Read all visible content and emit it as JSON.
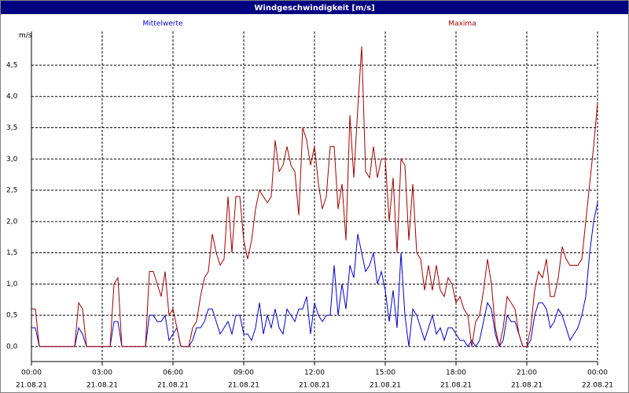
{
  "chart_data": {
    "type": "line",
    "title": "Windgeschwindigkeit [m/s]",
    "y_label": "m/s",
    "x": [
      0,
      10,
      20,
      30,
      40,
      50,
      60,
      70,
      80,
      90,
      100,
      110,
      120,
      130,
      140,
      150,
      160,
      170,
      180,
      190,
      200,
      210,
      220,
      230,
      240,
      250,
      260,
      270,
      280,
      290,
      300,
      310,
      320,
      330,
      340,
      350,
      360,
      370,
      380,
      390,
      400,
      410,
      420,
      430,
      440,
      450,
      460,
      470,
      480,
      490,
      500,
      510,
      520,
      530,
      540,
      550,
      560,
      570,
      580,
      590,
      600,
      610,
      620,
      630,
      640,
      650,
      660,
      670,
      680,
      690,
      700,
      710,
      720,
      730,
      740,
      750,
      760,
      770,
      780,
      790,
      800,
      810,
      820,
      830,
      840,
      850,
      860,
      870,
      880,
      890,
      900,
      910,
      920,
      930,
      940,
      950,
      960,
      970,
      980,
      990,
      1000,
      1010,
      1020,
      1030,
      1040,
      1050,
      1060,
      1070,
      1080,
      1090,
      1100,
      1110,
      1120,
      1130,
      1140,
      1150,
      1160,
      1170,
      1180,
      1190,
      1200,
      1210,
      1220,
      1230,
      1240,
      1250,
      1260,
      1270,
      1280,
      1290,
      1300,
      1310,
      1320,
      1330,
      1340,
      1350,
      1360,
      1370,
      1380,
      1390,
      1400,
      1410,
      1420,
      1430,
      1440
    ],
    "series": [
      {
        "name": "Mittelwerte",
        "color": "#0000cc",
        "values": [
          0.3,
          0.3,
          0,
          0,
          0,
          0,
          0,
          0,
          0,
          0,
          0,
          0,
          0.3,
          0.2,
          0,
          0,
          0,
          0,
          0,
          0,
          0,
          0.4,
          0.4,
          0,
          0,
          0,
          0,
          0,
          0,
          0,
          0.5,
          0.5,
          0.4,
          0.4,
          0.5,
          0.1,
          0.2,
          0.3,
          0,
          0,
          0,
          0.1,
          0.3,
          0.3,
          0.4,
          0.6,
          0.6,
          0.4,
          0.2,
          0.3,
          0.4,
          0.2,
          0.5,
          0.5,
          0.2,
          0.2,
          0.1,
          0.3,
          0.7,
          0.2,
          0.5,
          0.3,
          0.6,
          0.3,
          0.2,
          0.6,
          0.5,
          0.4,
          0.6,
          0.6,
          0.8,
          0.2,
          0.7,
          0.5,
          0.4,
          0.5,
          0.5,
          1.3,
          0.5,
          1.0,
          0.6,
          1.3,
          1.1,
          1.8,
          1.5,
          1.2,
          1.3,
          1.5,
          1.0,
          1.2,
          0.9,
          0.4,
          0.9,
          0.3,
          1.5,
          0.5,
          0,
          0.6,
          0.5,
          0.3,
          0.1,
          0.3,
          0.5,
          0.2,
          0.3,
          0.1,
          0.3,
          0.3,
          0.2,
          0.1,
          0.1,
          0,
          0.1,
          0,
          0.1,
          0.4,
          0.7,
          0.6,
          0.2,
          0,
          0.1,
          0.5,
          0.4,
          0.4,
          0.2,
          0,
          0,
          0.1,
          0.5,
          0.7,
          0.7,
          0.6,
          0.3,
          0.4,
          0.6,
          0.5,
          0.3,
          0.1,
          0.2,
          0.3,
          0.5,
          0.8,
          1.5,
          2.0,
          2.3
        ]
      },
      {
        "name": "Maxima",
        "color": "#a00000",
        "values": [
          0.6,
          0.6,
          0,
          0,
          0,
          0,
          0,
          0,
          0,
          0,
          0,
          0,
          0.7,
          0.6,
          0,
          0,
          0,
          0,
          0,
          0,
          0,
          1.0,
          1.1,
          0,
          0,
          0,
          0,
          0,
          0,
          0,
          1.2,
          1.2,
          1.0,
          0.8,
          1.2,
          0.5,
          0.6,
          0.3,
          0,
          0,
          0,
          0.3,
          0.4,
          0.8,
          1.1,
          1.2,
          1.8,
          1.5,
          1.3,
          1.4,
          2.4,
          1.5,
          2.4,
          2.4,
          1.7,
          1.4,
          1.7,
          2.2,
          2.5,
          2.4,
          2.3,
          2.4,
          3.3,
          2.8,
          2.9,
          3.2,
          2.9,
          2.8,
          2.1,
          3.5,
          3.3,
          2.9,
          3.2,
          2.6,
          2.2,
          2.4,
          3.2,
          3.2,
          2.2,
          2.6,
          1.7,
          3.7,
          2.7,
          3.8,
          4.8,
          2.8,
          2.7,
          3.2,
          2.7,
          3.0,
          3.0,
          2.0,
          2.7,
          1.5,
          3.0,
          2.9,
          1.7,
          2.6,
          1.5,
          1.4,
          0.9,
          1.3,
          0.9,
          1.3,
          0.9,
          0.8,
          1.1,
          1.0,
          0.7,
          0.8,
          0.6,
          0.5,
          0,
          0.4,
          0.5,
          0.9,
          1.4,
          1.0,
          0.3,
          0,
          0.3,
          0.8,
          0.7,
          0.6,
          0.2,
          0,
          0,
          0.3,
          0.9,
          1.2,
          1.1,
          1.4,
          0.8,
          0.8,
          1.1,
          1.6,
          1.4,
          1.3,
          1.3,
          1.3,
          1.4,
          2.0,
          2.6,
          3.2,
          3.9
        ]
      }
    ],
    "xlim": [
      0,
      1440
    ],
    "xticks": [
      {
        "value": 0,
        "label": "00:00",
        "date": "21.08.21"
      },
      {
        "value": 180,
        "label": "03:00",
        "date": "21.08.21"
      },
      {
        "value": 360,
        "label": "06:00",
        "date": "21.08.21"
      },
      {
        "value": 540,
        "label": "09:00",
        "date": "21.08.21"
      },
      {
        "value": 720,
        "label": "12:00",
        "date": "21.08.21"
      },
      {
        "value": 900,
        "label": "15:00",
        "date": "21.08.21"
      },
      {
        "value": 1080,
        "label": "18:00",
        "date": "21.08.21"
      },
      {
        "value": 1260,
        "label": "21:00",
        "date": "21.08.21"
      },
      {
        "value": 1440,
        "label": "00:00",
        "date": "22.08.21"
      }
    ],
    "ylim": [
      -0.24,
      5.04
    ],
    "yticks": [
      {
        "value": 0,
        "label": "0,0"
      },
      {
        "value": 0.5,
        "label": "0,5"
      },
      {
        "value": 1,
        "label": "1,0"
      },
      {
        "value": 1.5,
        "label": "1,5"
      },
      {
        "value": 2,
        "label": "2,0"
      },
      {
        "value": 2.5,
        "label": "2,5"
      },
      {
        "value": 3,
        "label": "3,0"
      },
      {
        "value": 3.5,
        "label": "3,5"
      },
      {
        "value": 4,
        "label": "4,0"
      },
      {
        "value": 4.5,
        "label": "4,5"
      }
    ],
    "grid": true
  }
}
